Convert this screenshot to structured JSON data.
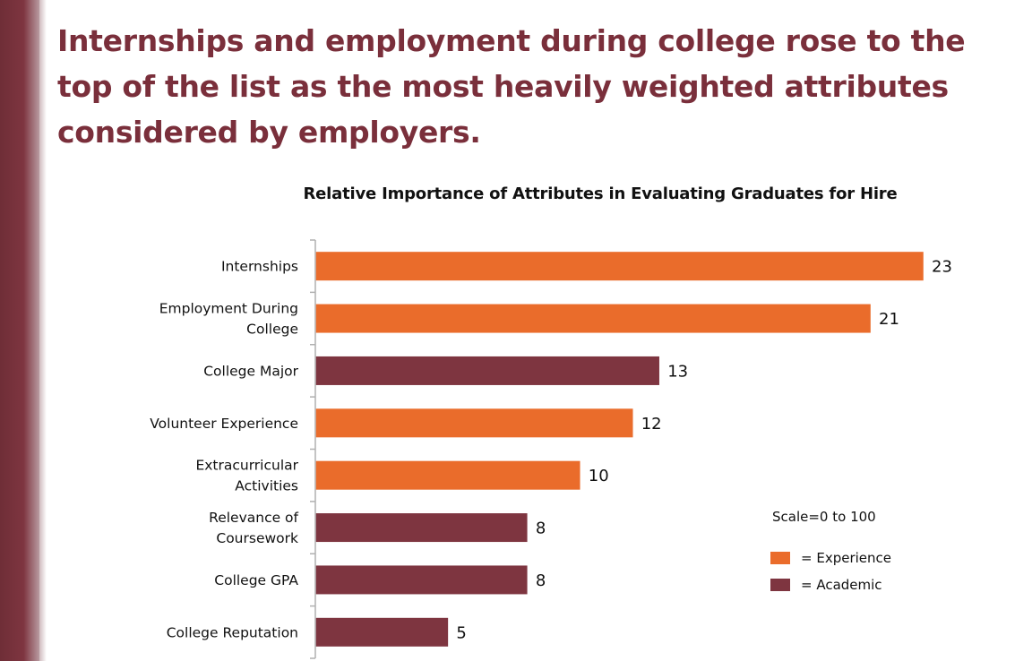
{
  "slide": {
    "title": "Internships and employment during college rose to the top of the list as the most heavily weighted attributes considered by employers."
  },
  "colors": {
    "experience": "#ea6c2b",
    "academic": "#7e3540",
    "title": "#7a2f3b"
  },
  "chart_data": {
    "type": "bar",
    "orientation": "horizontal",
    "title": "Relative Importance of Attributes in Evaluating Graduates for Hire",
    "xlim": [
      0,
      23
    ],
    "grid": false,
    "categories": [
      [
        "Internships"
      ],
      [
        "Employment During",
        "College"
      ],
      [
        "College Major"
      ],
      [
        "Volunteer Experience"
      ],
      [
        "Extracurricular",
        "Activities"
      ],
      [
        "Relevance of",
        "Coursework"
      ],
      [
        "College GPA"
      ],
      [
        "College Reputation"
      ]
    ],
    "values": [
      23,
      21,
      13,
      12,
      10,
      8,
      8,
      5
    ],
    "groups": [
      "experience",
      "experience",
      "academic",
      "experience",
      "experience",
      "academic",
      "academic",
      "academic"
    ],
    "legend": {
      "placement": "bottom-right",
      "note": "Scale=0 to 100",
      "entries": [
        {
          "key": "experience",
          "label": "= Experience"
        },
        {
          "key": "academic",
          "label": "= Academic"
        }
      ]
    }
  }
}
